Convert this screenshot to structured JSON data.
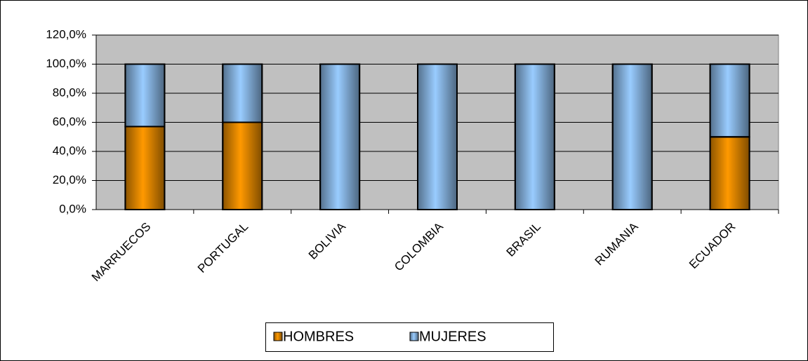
{
  "chart_data": {
    "type": "stacked_bar",
    "categories": [
      "MARRUECOS",
      "PORTUGAL",
      "BOLIVIA",
      "COLOMBIA",
      "BRASIL",
      "RUMANIA",
      "ECUADOR"
    ],
    "series": [
      {
        "name": "HOMBRES",
        "color": "#ff9900",
        "values": [
          57.1,
          60,
          0,
          0,
          0,
          0,
          50
        ]
      },
      {
        "name": "MUJERES",
        "color": "#99ccff",
        "values": [
          42.9,
          40,
          100,
          100,
          100,
          100,
          50
        ]
      }
    ],
    "ylim": [
      0,
      120
    ],
    "yticks": [
      {
        "value": 0,
        "label": "0,0%"
      },
      {
        "value": 20,
        "label": "20,0%"
      },
      {
        "value": 40,
        "label": "40,0%"
      },
      {
        "value": 60,
        "label": "60,0%"
      },
      {
        "value": 80,
        "label": "80,0%"
      },
      {
        "value": 100,
        "label": "100,0%"
      },
      {
        "value": 120,
        "label": "120,0%"
      }
    ],
    "grid": true,
    "legend": "bottom"
  }
}
